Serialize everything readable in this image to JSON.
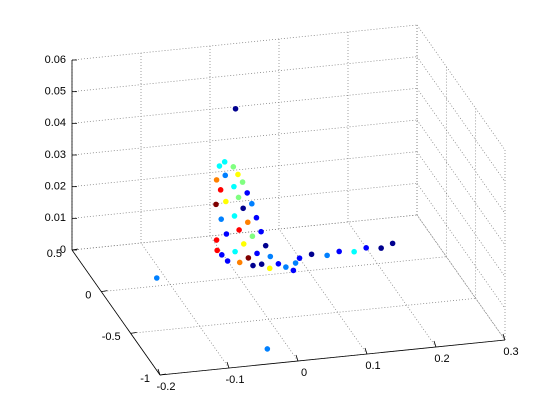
{
  "chart_data": {
    "type": "scatter3d",
    "x": [
      0.0,
      0.01,
      -0.005,
      0.015,
      0.0,
      0.02,
      -0.01,
      0.01,
      0.025,
      -0.005,
      0.015,
      0.03,
      0.0,
      0.02,
      -0.01,
      0.035,
      0.01,
      0.025,
      -0.005,
      0.04,
      0.015,
      0.03,
      0.0,
      0.045,
      0.02,
      -0.01,
      0.05,
      0.035,
      0.01,
      0.06,
      0.025,
      -0.005,
      0.07,
      0.04,
      0.015,
      0.08,
      0.0,
      0.05,
      -0.01,
      0.03,
      0.1,
      0.12,
      0.14,
      0.16,
      0.18,
      0.2,
      0.22,
      0.24,
      0.09,
      0.02,
      -0.112,
      -0.03
    ],
    "y": [
      0.25,
      0.22,
      0.28,
      0.2,
      0.24,
      0.18,
      0.27,
      0.21,
      0.16,
      0.26,
      0.19,
      0.14,
      0.23,
      0.17,
      0.28,
      0.12,
      0.2,
      0.15,
      0.25,
      0.1,
      0.18,
      0.13,
      0.22,
      0.08,
      0.16,
      0.27,
      0.06,
      0.11,
      0.19,
      0.04,
      0.14,
      0.24,
      0.03,
      0.09,
      0.17,
      0.02,
      0.2,
      0.07,
      0.26,
      0.12,
      0.15,
      0.18,
      0.15,
      0.18,
      0.16,
      0.19,
      0.17,
      0.21,
      0.1,
      0.3,
      0.09,
      -0.83
    ],
    "z": [
      0.03,
      0.029,
      0.028,
      0.027,
      0.026,
      0.025,
      0.024,
      0.023,
      0.022,
      0.021,
      0.02,
      0.019,
      0.018,
      0.017,
      0.016,
      0.015,
      0.014,
      0.013,
      0.012,
      0.011,
      0.01,
      0.009,
      0.008,
      0.007,
      0.006,
      0.005,
      0.004,
      0.004,
      0.003,
      0.002,
      0.002,
      0.001,
      0.001,
      0.001,
      0,
      0,
      0,
      0,
      0.002,
      0,
      0,
      0,
      0,
      0,
      0,
      0,
      0,
      0,
      0,
      0.045,
      0,
      0
    ],
    "colors": [
      "#00ffff",
      "#80ff80",
      "#00ffff",
      "#ffff00",
      "#0080ff",
      "#80ff80",
      "#ff8000",
      "#00ffff",
      "#0000ff",
      "#ff0000",
      "#80ff80",
      "#0080ff",
      "#ffff00",
      "#00008f",
      "#800000",
      "#0000ff",
      "#00ffff",
      "#ff8000",
      "#0080ff",
      "#0000ff",
      "#ff0000",
      "#80ff80",
      "#0000ff",
      "#00008f",
      "#ffff00",
      "#ff0000",
      "#0080ff",
      "#0000ff",
      "#00ffff",
      "#0000ff",
      "#800000",
      "#0000ff",
      "#0080ff",
      "#00008f",
      "#ff8000",
      "#0000ff",
      "#0000ff",
      "#ffff00",
      "#ff0000",
      "#00008f",
      "#0000ff",
      "#00008f",
      "#0080ff",
      "#0000ff",
      "#00ffff",
      "#0000ff",
      "#00008f",
      "#00008f",
      "#0080ff",
      "#00008f",
      "#0080ff",
      "#0080ff"
    ],
    "xlim": [
      -0.2,
      0.3
    ],
    "ylim": [
      -1,
      0.5
    ],
    "zlim": [
      0,
      0.06
    ],
    "xticks": [
      -0.2,
      -0.1,
      0,
      0.1,
      0.2,
      0.3
    ],
    "yticks": [
      -1,
      -0.5,
      0,
      0.5
    ],
    "zticks": [
      0,
      0.01,
      0.02,
      0.03,
      0.04,
      0.05,
      0.06
    ],
    "grid": true
  }
}
